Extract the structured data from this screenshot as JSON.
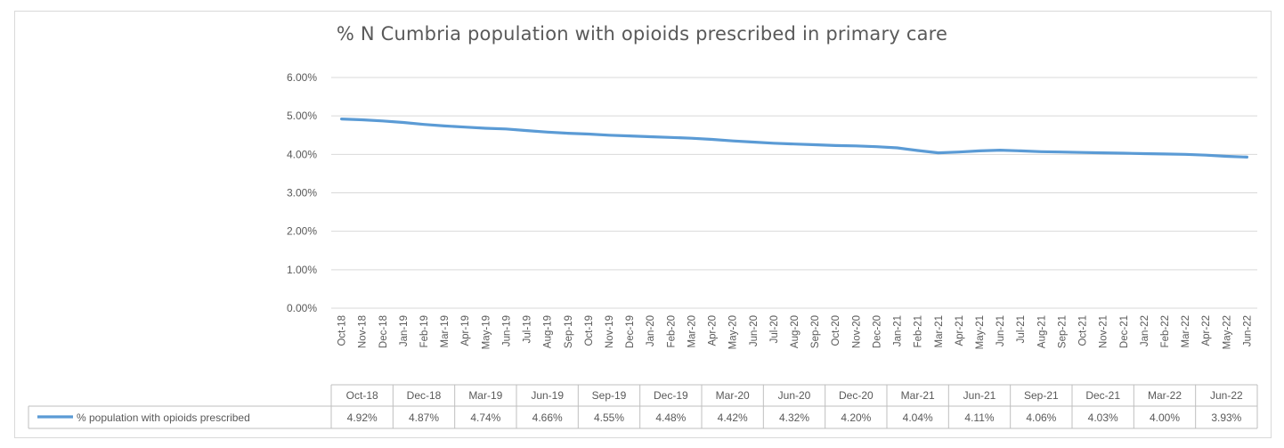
{
  "chart_data": {
    "type": "line",
    "title": "% N Cumbria population with opioids prescribed in primary care",
    "xlabel": "",
    "ylabel": "",
    "ylim": [
      0,
      6
    ],
    "y_ticks": [
      "6.00%",
      "5.00%",
      "4.00%",
      "3.00%",
      "2.00%",
      "1.00%",
      "0.00%"
    ],
    "y_tick_values": [
      6,
      5,
      4,
      3,
      2,
      1,
      0
    ],
    "grid": true,
    "legend": "data-table",
    "line_color": "#5b9bd5",
    "categories": [
      "Oct-18",
      "Nov-18",
      "Dec-18",
      "Jan-19",
      "Feb-19",
      "Mar-19",
      "Apr-19",
      "May-19",
      "Jun-19",
      "Jul-19",
      "Aug-19",
      "Sep-19",
      "Oct-19",
      "Nov-19",
      "Dec-19",
      "Jan-20",
      "Feb-20",
      "Mar-20",
      "Apr-20",
      "May-20",
      "Jun-20",
      "Jul-20",
      "Aug-20",
      "Sep-20",
      "Oct-20",
      "Nov-20",
      "Dec-20",
      "Jan-21",
      "Feb-21",
      "Mar-21",
      "Apr-21",
      "May-21",
      "Jun-21",
      "Jul-21",
      "Aug-21",
      "Sep-21",
      "Oct-21",
      "Nov-21",
      "Dec-21",
      "Jan-22",
      "Feb-22",
      "Mar-22",
      "Apr-22",
      "May-22",
      "Jun-22"
    ],
    "series": [
      {
        "name": "% population with opioids prescribed",
        "values": [
          4.92,
          4.9,
          4.87,
          4.83,
          4.78,
          4.74,
          4.71,
          4.68,
          4.66,
          4.62,
          4.58,
          4.55,
          4.53,
          4.5,
          4.48,
          4.46,
          4.44,
          4.42,
          4.39,
          4.35,
          4.32,
          4.29,
          4.27,
          4.25,
          4.23,
          4.22,
          4.2,
          4.17,
          4.1,
          4.04,
          4.06,
          4.09,
          4.11,
          4.09,
          4.07,
          4.06,
          4.05,
          4.04,
          4.03,
          4.02,
          4.01,
          4.0,
          3.98,
          3.95,
          3.93
        ]
      }
    ],
    "table": {
      "columns": [
        "Oct-18",
        "Dec-18",
        "Mar-19",
        "Jun-19",
        "Sep-19",
        "Dec-19",
        "Mar-20",
        "Jun-20",
        "Dec-20",
        "Mar-21",
        "Jun-21",
        "Sep-21",
        "Dec-21",
        "Mar-22",
        "Jun-22"
      ],
      "row_label": "% population with opioids prescribed",
      "row_values": [
        "4.92%",
        "4.87%",
        "4.74%",
        "4.66%",
        "4.55%",
        "4.48%",
        "4.42%",
        "4.32%",
        "4.20%",
        "4.04%",
        "4.11%",
        "4.06%",
        "4.03%",
        "4.00%",
        "3.93%"
      ]
    }
  }
}
